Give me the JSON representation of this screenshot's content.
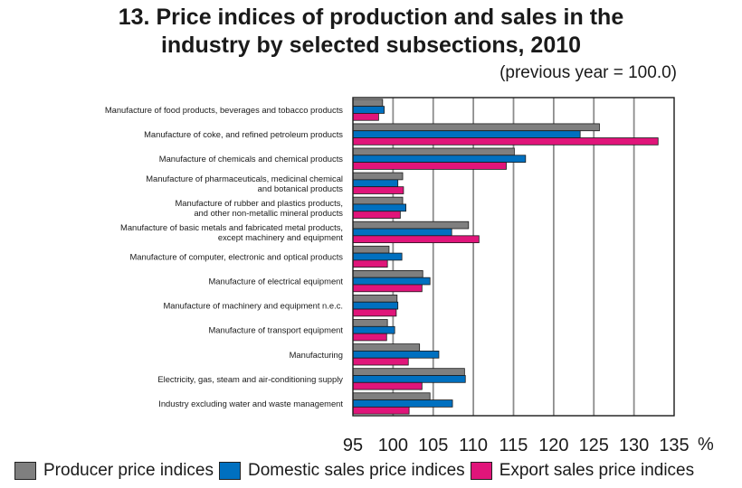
{
  "chart_data": {
    "type": "bar",
    "orientation": "horizontal",
    "title_line1": "13. Price indices of production and sales in the",
    "title_line2": "industry by selected subsections, 2010",
    "subtitle": "(previous year = 100.0)",
    "x_unit": "%",
    "xlim": [
      95,
      135
    ],
    "x_ticks": [
      95,
      100,
      105,
      110,
      115,
      120,
      125,
      130,
      135
    ],
    "grid": true,
    "legend_position": "bottom",
    "categories": [
      [
        "Manufacture of food products, beverages and tobacco products"
      ],
      [
        "Manufacture of coke, and refined petroleum products"
      ],
      [
        "Manufacture of chemicals and chemical products"
      ],
      [
        "Manufacture of pharmaceuticals, medicinal chemical",
        "and botanical products"
      ],
      [
        "Manufacture of rubber and plastics products,",
        "and other non-metallic mineral products"
      ],
      [
        "Manufacture of basic metals and fabricated metal products,",
        "except machinery and equipment"
      ],
      [
        "Manufacture of computer, electronic  and optical products"
      ],
      [
        "Manufacture of electrical equipment"
      ],
      [
        "Manufacture of machinery and equipment n.e.c."
      ],
      [
        "Manufacture of transport equipment"
      ],
      [
        "Manufacturing"
      ],
      [
        "Electricity, gas, steam and air-conditioning supply"
      ],
      [
        "Industry excluding water and waste management"
      ]
    ],
    "series": [
      {
        "name": "Producer price indices",
        "color": "#7f7f7f",
        "values": [
          98.7,
          125.7,
          115.1,
          101.2,
          101.2,
          109.4,
          99.5,
          103.7,
          100.5,
          99.3,
          103.3,
          108.9,
          104.6
        ]
      },
      {
        "name": "Domestic sales price indices",
        "color": "#0070c0",
        "values": [
          98.9,
          123.3,
          116.5,
          100.6,
          101.6,
          107.3,
          101.1,
          104.6,
          100.6,
          100.2,
          105.7,
          109.0,
          107.4
        ]
      },
      {
        "name": "Export sales price indices",
        "color": "#e0157a",
        "values": [
          98.2,
          133.0,
          114.1,
          101.3,
          100.9,
          110.7,
          99.3,
          103.6,
          100.4,
          99.2,
          101.9,
          103.6,
          102.0
        ]
      }
    ]
  }
}
